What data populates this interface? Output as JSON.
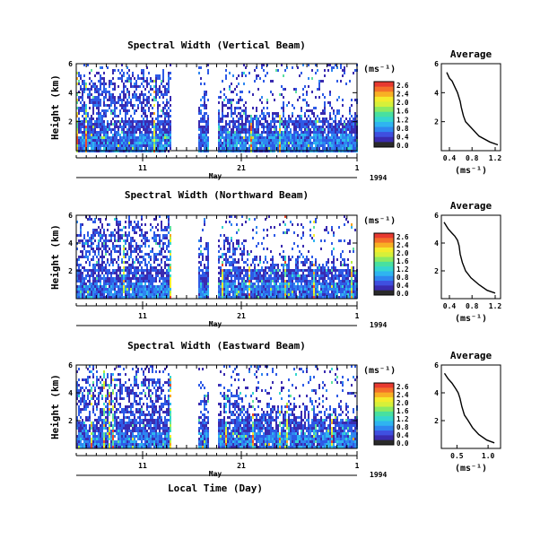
{
  "chart_data": [
    {
      "type": "heatmap",
      "title": "Spectral Width (Vertical Beam)",
      "ylabel": "Height (km)",
      "y_ticks": [
        "6",
        "4",
        "2"
      ],
      "x_ticks": [
        "11",
        "21",
        "1"
      ],
      "x_group_label": "May",
      "year": "1994",
      "ylim": [
        0,
        6
      ],
      "colorbar": {
        "unit": "(ms⁻¹)",
        "ticks": [
          "2.6",
          "2.4",
          "2.0",
          "1.6",
          "1.2",
          "0.8",
          "0.4",
          "0.0"
        ]
      },
      "profile": {
        "title": "Average",
        "xlabel": "(ms⁻¹)",
        "x_ticks": [
          "0.4",
          "0.8",
          "1.2"
        ],
        "y_ticks": [
          "6",
          "4",
          "2"
        ],
        "points": [
          [
            0.35,
            5.4
          ],
          [
            0.4,
            5.0
          ],
          [
            0.45,
            4.8
          ],
          [
            0.5,
            4.4
          ],
          [
            0.55,
            4.0
          ],
          [
            0.6,
            3.4
          ],
          [
            0.62,
            3.0
          ],
          [
            0.66,
            2.4
          ],
          [
            0.7,
            2.0
          ],
          [
            0.8,
            1.6
          ],
          [
            0.95,
            1.0
          ],
          [
            1.15,
            0.6
          ],
          [
            1.3,
            0.4
          ]
        ]
      }
    },
    {
      "type": "heatmap",
      "title": "Spectral Width (Northward Beam)",
      "ylabel": "Height (km)",
      "y_ticks": [
        "6",
        "4",
        "2"
      ],
      "x_ticks": [
        "11",
        "21",
        "1"
      ],
      "x_group_label": "May",
      "year": "1994",
      "ylim": [
        0,
        6
      ],
      "colorbar": {
        "unit": "(ms⁻¹)",
        "ticks": [
          "2.6",
          "2.4",
          "2.0",
          "1.6",
          "1.2",
          "0.8",
          "0.4",
          "0.0"
        ]
      },
      "profile": {
        "title": "Average",
        "xlabel": "(ms⁻¹)",
        "x_ticks": [
          "0.4",
          "0.8",
          "1.2"
        ],
        "y_ticks": [
          "6",
          "4",
          "2"
        ],
        "points": [
          [
            0.3,
            5.5
          ],
          [
            0.38,
            5.0
          ],
          [
            0.45,
            4.7
          ],
          [
            0.5,
            4.5
          ],
          [
            0.55,
            4.2
          ],
          [
            0.58,
            3.8
          ],
          [
            0.6,
            3.2
          ],
          [
            0.64,
            2.6
          ],
          [
            0.7,
            2.0
          ],
          [
            0.8,
            1.5
          ],
          [
            0.95,
            1.0
          ],
          [
            1.1,
            0.6
          ],
          [
            1.25,
            0.4
          ]
        ]
      }
    },
    {
      "type": "heatmap",
      "title": "Spectral Width (Eastward Beam)",
      "ylabel": "Height (km)",
      "y_ticks": [
        "6",
        "4",
        "2"
      ],
      "x_ticks": [
        "11",
        "21",
        "1"
      ],
      "x_group_label": "May",
      "year": "1994",
      "xlabel": "Local Time (Day)",
      "ylim": [
        0,
        6
      ],
      "colorbar": {
        "unit": "(ms⁻¹)",
        "ticks": [
          "2.6",
          "2.4",
          "2.0",
          "1.6",
          "1.2",
          "0.8",
          "0.4",
          "0.0"
        ]
      },
      "profile": {
        "title": "Average",
        "xlabel": "(ms⁻¹)",
        "x_ticks": [
          "0.5",
          "1.0"
        ],
        "x_tick_values": [
          0.5,
          1.0
        ],
        "y_ticks": [
          "6",
          "4",
          "2"
        ],
        "points": [
          [
            0.3,
            5.4
          ],
          [
            0.36,
            5.0
          ],
          [
            0.42,
            4.7
          ],
          [
            0.48,
            4.3
          ],
          [
            0.52,
            4.0
          ],
          [
            0.55,
            3.6
          ],
          [
            0.58,
            3.0
          ],
          [
            0.62,
            2.4
          ],
          [
            0.68,
            2.0
          ],
          [
            0.75,
            1.5
          ],
          [
            0.85,
            1.0
          ],
          [
            0.98,
            0.6
          ],
          [
            1.1,
            0.4
          ]
        ]
      }
    }
  ]
}
